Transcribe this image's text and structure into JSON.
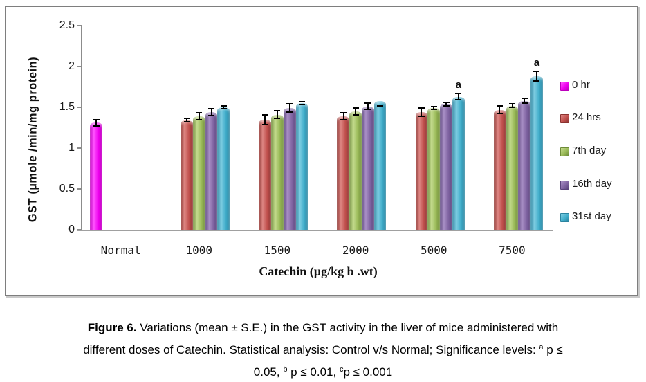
{
  "chart_data": {
    "type": "bar",
    "title": "",
    "ylabel": "GST (µmole /min/mg protein)",
    "xlabel": "Catechin (µg/kg b .wt)",
    "ylim": [
      0,
      2.5
    ],
    "yticks": [
      "0",
      "0.5",
      "1",
      "1.5",
      "2",
      "2.5"
    ],
    "grid": false,
    "legend_position": "right",
    "categories": [
      "Normal",
      "1000",
      "1500",
      "2000",
      "5000",
      "7500"
    ],
    "series": [
      {
        "name": "0 hr",
        "color": "#EE00EE",
        "color_light": "#FF55FF",
        "color_dark": "#BC00BC",
        "values": [
          1.31,
          null,
          null,
          null,
          null,
          null
        ],
        "errors": [
          0.04,
          null,
          null,
          null,
          null,
          null
        ]
      },
      {
        "name": "24 hrs",
        "color": "#C0504D",
        "color_light": "#DE8683",
        "color_dark": "#8C3330",
        "values": [
          null,
          1.34,
          1.35,
          1.39,
          1.44,
          1.47
        ],
        "errors": [
          null,
          0.02,
          0.06,
          0.04,
          0.05,
          0.05
        ]
      },
      {
        "name": "7th day",
        "color": "#9BBB59",
        "color_light": "#C4DB8E",
        "color_dark": "#6E8B38",
        "values": [
          null,
          1.39,
          1.41,
          1.45,
          1.49,
          1.52
        ],
        "errors": [
          null,
          0.04,
          0.05,
          0.04,
          0.02,
          0.02
        ]
      },
      {
        "name": "16th day",
        "color": "#8064A2",
        "color_light": "#A990C6",
        "color_dark": "#59437B",
        "values": [
          null,
          1.44,
          1.49,
          1.51,
          1.54,
          1.58
        ],
        "errors": [
          null,
          0.04,
          0.05,
          0.04,
          0.02,
          0.03
        ]
      },
      {
        "name": "31st day",
        "color": "#41AECB",
        "color_light": "#7FCDE2",
        "color_dark": "#2B84A0",
        "values": [
          null,
          1.5,
          1.55,
          1.58,
          1.63,
          1.88
        ],
        "errors": [
          null,
          0.02,
          0.02,
          0.06,
          0.04,
          0.06
        ]
      }
    ],
    "annotations": [
      {
        "category": "5000",
        "series": "31st day",
        "text": "a"
      },
      {
        "category": "7500",
        "series": "31st day",
        "text": "a"
      }
    ]
  },
  "caption": {
    "lines": [
      [
        {
          "text": "Figure 6.",
          "bold": true
        },
        {
          "text": " Variations (mean ± S.E.) in the GST activity in the liver of mice administered with"
        }
      ],
      [
        {
          "text": "different doses of Catechin.  Statistical analysis: Control v/s Normal; Significance levels: "
        },
        {
          "text": "a",
          "sup": true
        },
        {
          "text": " p ≤"
        }
      ],
      [
        {
          "text": "0.05, "
        },
        {
          "text": "b",
          "sup": true
        },
        {
          "text": " p ≤ 0.01, "
        },
        {
          "text": "c",
          "sup": true
        },
        {
          "text": "p  ≤ 0.001"
        }
      ]
    ]
  }
}
